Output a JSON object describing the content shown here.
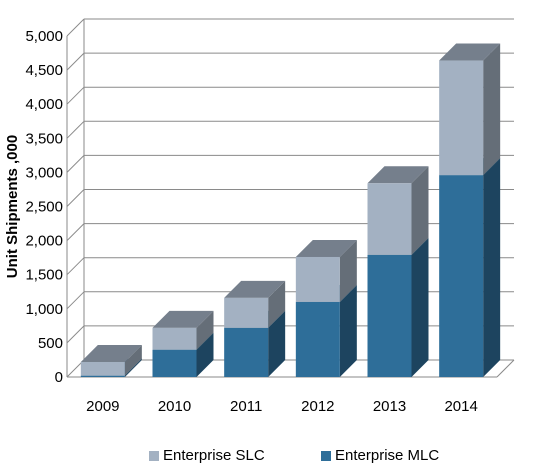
{
  "chart_data": {
    "type": "bar",
    "stacked": true,
    "three_d": true,
    "categories": [
      "2009",
      "2010",
      "2011",
      "2012",
      "2013",
      "2014"
    ],
    "series": [
      {
        "name": "Enterprise MLC",
        "values": [
          20,
          400,
          720,
          1100,
          1790,
          2960
        ],
        "color": "#2e6e99"
      },
      {
        "name": "Enterprise SLC",
        "values": [
          200,
          320,
          440,
          660,
          1050,
          1680
        ],
        "color": "#a3b1c2"
      }
    ],
    "ylabel": "Unit Shipments ,000",
    "xlabel": "",
    "ylim": [
      0,
      5000
    ],
    "yticks": [
      "0",
      "500",
      "1,000",
      "1,500",
      "2,000",
      "2,500",
      "3,000",
      "3,500",
      "4,000",
      "4,500",
      "5,000"
    ],
    "grid": true,
    "legend_position": "bottom"
  },
  "legend": {
    "slc_label": "Enterprise SLC",
    "mlc_label": "Enterprise MLC"
  }
}
